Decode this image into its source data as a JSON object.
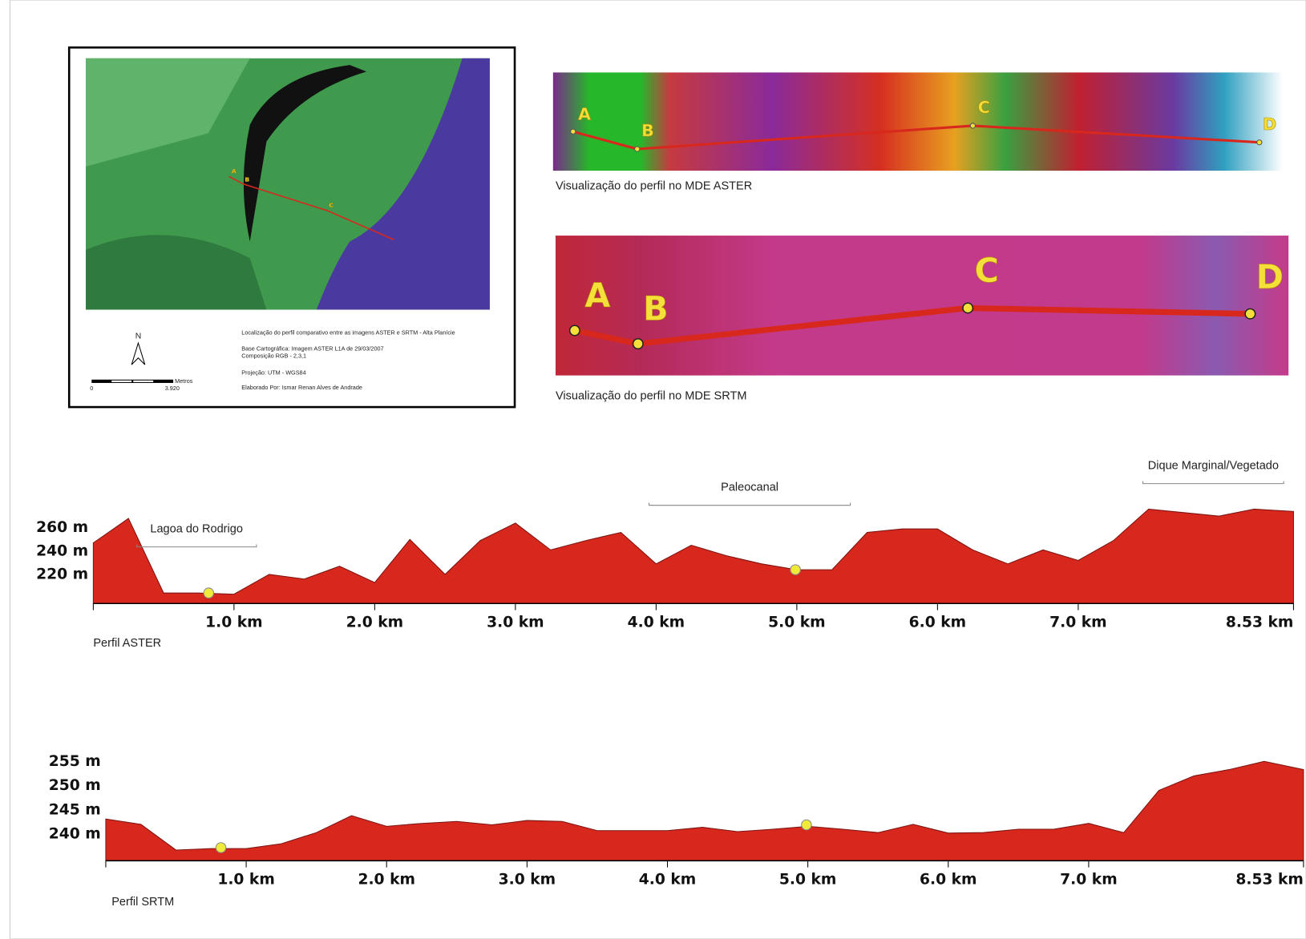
{
  "map": {
    "title": "Localização do perfil comparativo entre as imagens ASTER e SRTM - Alta Planície",
    "base": "Base Cartográfica: Imagem ASTER L1A de 29/03/2007",
    "composition": "Composição RGB - 2,3,1",
    "projection": "Projeção: UTM - WGS84",
    "author": "Elaborado Por: Ismar Renan Alves de Andrade",
    "north": "N",
    "scale_unit": "Metros",
    "scale_start": "0",
    "scale_end": "3.920",
    "points": [
      "A",
      "B",
      "C"
    ]
  },
  "aster_view": {
    "caption": "Visualização do perfil no MDE ASTER",
    "points": [
      "A",
      "B",
      "C",
      "D"
    ]
  },
  "srtm_view": {
    "caption": "Visualização do perfil no MDE SRTM",
    "points": [
      "A",
      "B",
      "C",
      "D"
    ]
  },
  "chart_data": [
    {
      "type": "area",
      "xlabel": "Perfil ASTER",
      "color": "#d8281e",
      "x": [
        0,
        0.25,
        0.5,
        0.75,
        1.0,
        1.25,
        1.5,
        1.75,
        2.0,
        2.25,
        2.5,
        2.75,
        3.0,
        3.25,
        3.5,
        3.75,
        4.0,
        4.25,
        4.5,
        4.75,
        5.0,
        5.25,
        5.5,
        5.75,
        6.0,
        6.25,
        6.5,
        6.75,
        7.0,
        7.25,
        7.5,
        7.75,
        8.0,
        8.25,
        8.53
      ],
      "values": [
        247,
        268,
        204,
        204,
        203,
        220,
        216,
        227,
        213,
        250,
        220,
        249,
        264,
        241,
        249,
        256,
        229,
        245,
        236,
        229,
        224,
        224,
        256,
        259,
        259,
        241,
        229,
        241,
        232,
        249,
        276,
        273,
        270,
        276,
        274
      ],
      "points": {
        "x": [
          0.82,
          4.99
        ],
        "values": [
          204,
          224
        ]
      },
      "annotations": [
        {
          "text": "Lagoa do Rodrigo",
          "x": [
            0.31,
            1.16
          ]
        },
        {
          "text": "Paleocanal",
          "x": [
            3.95,
            5.38
          ]
        },
        {
          "text": "Dique Marginal/Vegetado",
          "x": [
            7.46,
            8.46
          ]
        }
      ],
      "xlim": [
        0,
        8.53
      ],
      "ylim": [
        195,
        285
      ],
      "xticks": [
        {
          "value": 1,
          "label": "1.0 km"
        },
        {
          "value": 2,
          "label": "2.0 km"
        },
        {
          "value": 3,
          "label": "3.0 km"
        },
        {
          "value": 4,
          "label": "4.0 km"
        },
        {
          "value": 5,
          "label": "5.0 km"
        },
        {
          "value": 6,
          "label": "6.0 km"
        },
        {
          "value": 7,
          "label": "7.0 km"
        },
        {
          "value": 8.53,
          "label": "8.53 km"
        }
      ],
      "yticks": [
        {
          "value": 220,
          "label": "220 m"
        },
        {
          "value": 240,
          "label": "240 m"
        },
        {
          "value": 260,
          "label": "260 m"
        }
      ]
    },
    {
      "type": "area",
      "xlabel": "Perfil SRTM",
      "color": "#d8281e",
      "x": [
        0,
        0.25,
        0.5,
        0.75,
        1.0,
        1.25,
        1.5,
        1.75,
        2.0,
        2.25,
        2.5,
        2.75,
        3.0,
        3.25,
        3.5,
        3.75,
        4.0,
        4.25,
        4.5,
        4.75,
        5.0,
        5.25,
        5.5,
        5.75,
        6.0,
        6.25,
        6.5,
        6.75,
        7.0,
        7.25,
        7.5,
        7.75,
        8.0,
        8.25,
        8.53
      ],
      "values": [
        243.1,
        242,
        236.7,
        237,
        237,
        238,
        240.3,
        243.8,
        241.6,
        242.2,
        242.6,
        241.9,
        242.8,
        242.6,
        240.7,
        240.7,
        240.7,
        241.4,
        240.5,
        241,
        241.6,
        241,
        240.3,
        242,
        240.2,
        240.3,
        241,
        241,
        242.2,
        240.3,
        249,
        252,
        253.3,
        255,
        253.3
      ],
      "points": {
        "x": [
          0.82,
          4.99
        ],
        "values": [
          237.2,
          241.9
        ]
      },
      "xlim": [
        0,
        8.53
      ],
      "ylim": [
        234.5,
        257
      ],
      "xticks": [
        {
          "value": 1,
          "label": "1.0 km"
        },
        {
          "value": 2,
          "label": "2.0 km"
        },
        {
          "value": 3,
          "label": "3.0 km"
        },
        {
          "value": 4,
          "label": "4.0 km"
        },
        {
          "value": 5,
          "label": "5.0 km"
        },
        {
          "value": 6,
          "label": "6.0 km"
        },
        {
          "value": 7,
          "label": "7.0 km"
        },
        {
          "value": 8.53,
          "label": "8.53 km"
        }
      ],
      "yticks": [
        {
          "value": 240,
          "label": "240 m"
        },
        {
          "value": 245,
          "label": "245 m"
        },
        {
          "value": 250,
          "label": "250 m"
        },
        {
          "value": 255,
          "label": "255 m"
        }
      ]
    }
  ]
}
